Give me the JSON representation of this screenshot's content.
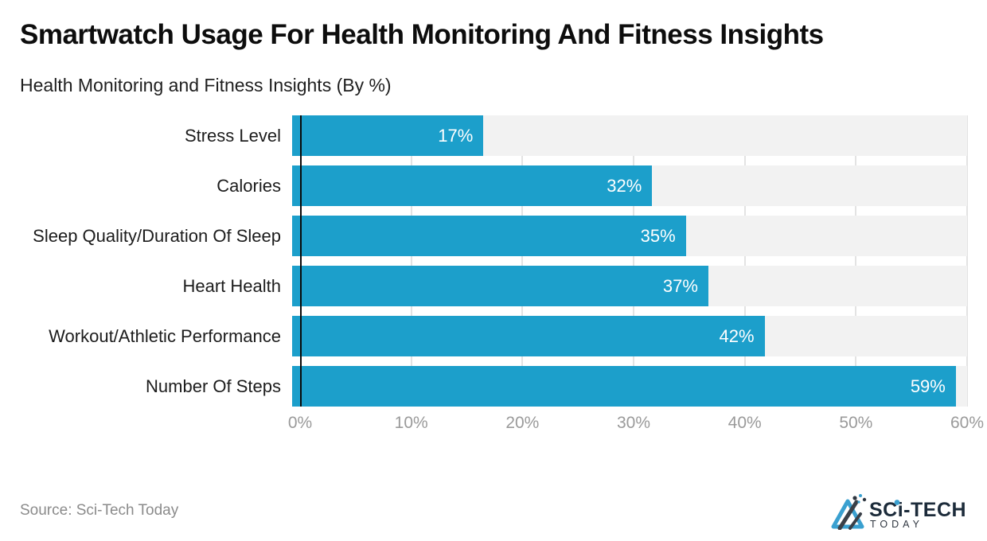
{
  "title": "Smartwatch Usage For Health Monitoring And Fitness Insights",
  "subtitle": "Health Monitoring and Fitness Insights (By %)",
  "source": "Source: Sci-Tech Today",
  "logo": {
    "name": "SCi-TECH",
    "tagline": "TODAY"
  },
  "colors": {
    "bar": "#1c9fcb",
    "plot_background": "#f2f2f2",
    "gridline": "#e3e3e3",
    "axis_line": "#0a0a0a",
    "tick_text": "#9a9a9a",
    "value_label_text": "#ffffff",
    "logo_blue": "#3aa0d0",
    "logo_dark": "#1c2b3a"
  },
  "chart_data": {
    "type": "bar",
    "orientation": "horizontal",
    "title": "Smartwatch Usage For Health Monitoring And Fitness Insights",
    "subtitle": "Health Monitoring and Fitness Insights (By %)",
    "categories": [
      "Stress Level",
      "Calories",
      "Sleep Quality/Duration Of Sleep",
      "Heart Health",
      "Workout/Athletic Performance",
      "Number Of Steps"
    ],
    "values": [
      17,
      32,
      35,
      37,
      42,
      59
    ],
    "value_labels": [
      "17%",
      "32%",
      "35%",
      "37%",
      "42%",
      "59%"
    ],
    "xlabel": "",
    "ylabel": "",
    "xlim": [
      0,
      60
    ],
    "x_ticks": [
      "0%",
      "10%",
      "20%",
      "30%",
      "40%",
      "50%",
      "60%"
    ],
    "grid": true,
    "legend": false
  }
}
